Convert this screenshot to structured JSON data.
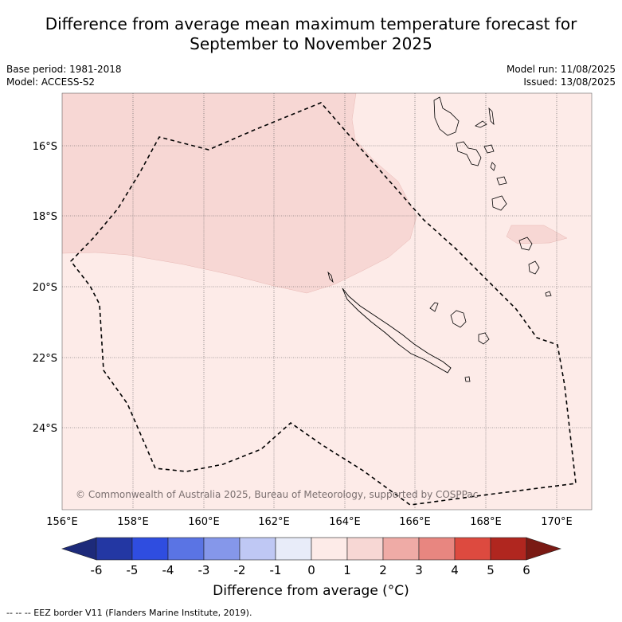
{
  "title_line1": "Difference from average mean maximum temperature forecast for",
  "title_line2": "September to November 2025",
  "base_period": "Base period: 1981-2018",
  "model": "Model: ACCESS-S2",
  "model_run": "Model run: 11/08/2025",
  "issued": "Issued: 13/08/2025",
  "copyright": "© Commonwealth of Australia 2025, Bureau of Meteorology, supported by COSPPac",
  "lon_labels": [
    "156°E",
    "158°E",
    "160°E",
    "162°E",
    "164°E",
    "166°E",
    "168°E",
    "170°E"
  ],
  "lat_labels": [
    "16°S",
    "18°S",
    "20°S",
    "22°S",
    "24°S"
  ],
  "colorbar": {
    "title": "Difference from average (°C)",
    "ticks": [
      "-6",
      "-5",
      "-4",
      "-3",
      "-2",
      "-1",
      "0",
      "1",
      "2",
      "3",
      "4",
      "5",
      "6"
    ],
    "colors": [
      "#2337a3",
      "#2f4de0",
      "#5a74e4",
      "#8597ea",
      "#bfc8f4",
      "#e8ecf9",
      "#fdebe8",
      "#f7d7d4",
      "#efaba6",
      "#e88680",
      "#dd4a3f",
      "#b0261f",
      "#7a1a14"
    ],
    "low_extend_color": "#1d2a7a"
  },
  "map_colors": {
    "zero_to_one": "#fdebe8",
    "one_to_two": "#f7d7d4"
  },
  "footnote": "--  --  -- EEZ border V11 (Flanders Marine Institute, 2019)."
}
